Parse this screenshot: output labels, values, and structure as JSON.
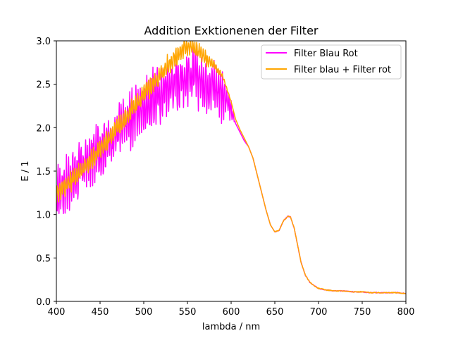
{
  "chart_data": {
    "type": "line",
    "title": "Addition Exktionenen der Filter",
    "xlabel": "lambda / nm",
    "ylabel": "E / 1",
    "xlim": [
      400,
      800
    ],
    "ylim": [
      0,
      3.0
    ],
    "x_ticks": [
      "400",
      "450",
      "500",
      "550",
      "600",
      "650",
      "700",
      "750",
      "800"
    ],
    "y_ticks": [
      "0.0",
      "0.5",
      "1.0",
      "1.5",
      "2.0",
      "2.5",
      "3.0"
    ],
    "grid": false,
    "legend_position": "top-right",
    "series": [
      {
        "name": "Filter Blau Rot",
        "color": "#ff00ff",
        "noise": "high-frequency oscillation of about ±0.35 between 400 and 600 nm",
        "x": [
          400,
          410,
          420,
          430,
          440,
          450,
          460,
          470,
          480,
          490,
          500,
          510,
          520,
          530,
          540,
          550,
          560,
          570,
          580,
          590,
          600,
          605,
          610,
          615,
          620,
          625,
          630,
          635,
          640,
          645,
          650,
          655,
          660,
          665,
          668,
          672,
          676,
          680,
          685,
          690,
          695,
          700,
          710,
          720,
          730,
          740,
          750,
          760,
          770,
          780,
          790,
          800
        ],
        "y": [
          1.25,
          1.35,
          1.45,
          1.55,
          1.65,
          1.75,
          1.85,
          1.95,
          2.05,
          2.15,
          2.25,
          2.32,
          2.4,
          2.48,
          2.55,
          2.6,
          2.58,
          2.52,
          2.5,
          2.4,
          2.2,
          2.05,
          1.95,
          1.85,
          1.78,
          1.65,
          1.45,
          1.25,
          1.05,
          0.88,
          0.8,
          0.82,
          0.93,
          0.98,
          0.97,
          0.85,
          0.65,
          0.45,
          0.3,
          0.22,
          0.18,
          0.15,
          0.13,
          0.12,
          0.12,
          0.11,
          0.11,
          0.1,
          0.1,
          0.1,
          0.1,
          0.09
        ]
      },
      {
        "name": "Filter blau + Filter rot",
        "color": "#ffa500",
        "noise": "smaller oscillation of about ±0.12 between 400 and 560 nm",
        "x": [
          400,
          410,
          420,
          430,
          440,
          450,
          460,
          470,
          480,
          490,
          500,
          510,
          520,
          530,
          540,
          550,
          560,
          570,
          580,
          590,
          600,
          605,
          610,
          615,
          620,
          625,
          630,
          635,
          640,
          645,
          650,
          655,
          660,
          665,
          668,
          672,
          676,
          680,
          685,
          690,
          695,
          700,
          710,
          720,
          730,
          740,
          750,
          760,
          770,
          780,
          790,
          800
        ],
        "y": [
          1.25,
          1.33,
          1.42,
          1.52,
          1.62,
          1.75,
          1.88,
          2.0,
          2.12,
          2.25,
          2.38,
          2.5,
          2.62,
          2.75,
          2.85,
          2.95,
          2.9,
          2.8,
          2.72,
          2.6,
          2.3,
          2.1,
          1.98,
          1.88,
          1.78,
          1.65,
          1.45,
          1.25,
          1.05,
          0.88,
          0.8,
          0.82,
          0.93,
          0.98,
          0.97,
          0.85,
          0.65,
          0.45,
          0.3,
          0.22,
          0.18,
          0.15,
          0.13,
          0.12,
          0.12,
          0.11,
          0.11,
          0.1,
          0.1,
          0.1,
          0.1,
          0.09
        ]
      }
    ]
  }
}
